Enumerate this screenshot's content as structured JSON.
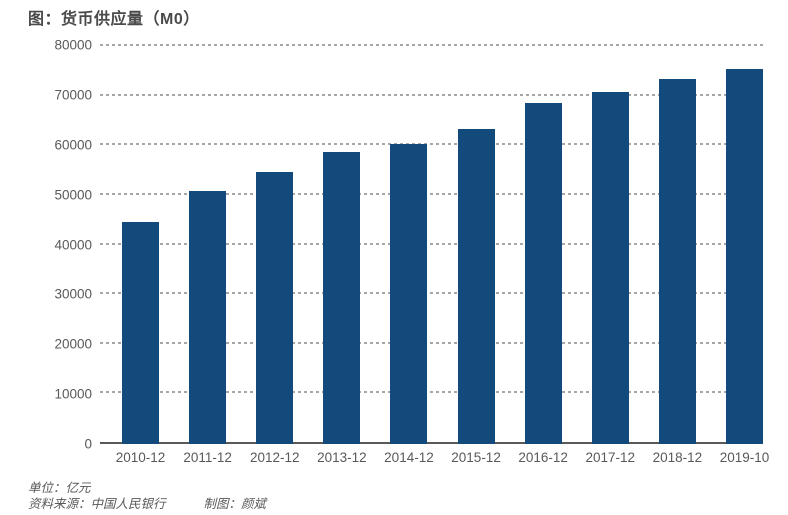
{
  "header": {
    "title": "图：货币供应量（M0）"
  },
  "chart_data": {
    "type": "bar",
    "title": "图：货币供应量（M0）",
    "categories": [
      "2010-12",
      "2011-12",
      "2012-12",
      "2013-12",
      "2014-12",
      "2015-12",
      "2016-12",
      "2017-12",
      "2018-12",
      "2019-10"
    ],
    "values": [
      44600,
      50700,
      54600,
      58600,
      60100,
      63200,
      68400,
      70600,
      73200,
      75200
    ],
    "unit": "亿元",
    "xlabel": "",
    "ylabel": "",
    "ylim": [
      0,
      80000
    ],
    "yticks": [
      0,
      10000,
      20000,
      30000,
      40000,
      50000,
      60000,
      70000,
      80000
    ],
    "grid": "horizontal-dotted",
    "legend_position": "none",
    "bar_color": "#134A7C"
  },
  "footer": {
    "unit_label": "单位：亿元",
    "source_label": "资料来源：中国人民银行",
    "credit_label": "制图：颜斌"
  },
  "colors": {
    "bar": "#134A7C",
    "axis_text": "#595959",
    "title_text": "#4a4a4a",
    "gridline": "#a6a6a6",
    "axis_line": "#595959",
    "background": "#ffffff"
  }
}
